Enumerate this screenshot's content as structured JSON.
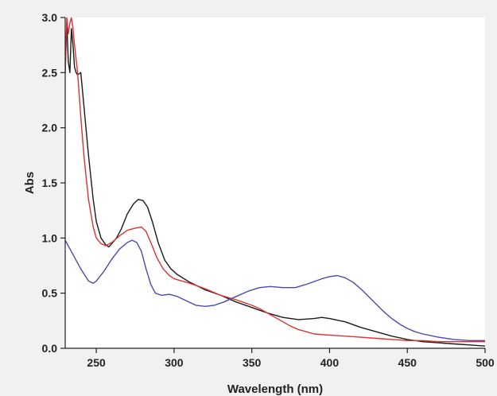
{
  "chart_data": {
    "type": "line",
    "xlabel": "Wavelength (nm)",
    "ylabel": "Abs",
    "xlim": [
      230,
      500
    ],
    "ylim": [
      0.0,
      3.0
    ],
    "x_ticks": [
      250,
      300,
      350,
      400,
      450,
      500
    ],
    "x_tick_labels": [
      "250",
      "300",
      "350",
      "400",
      "450",
      "500"
    ],
    "y_ticks": [
      0.0,
      0.5,
      1.0,
      1.5,
      2.0,
      2.5,
      3.0
    ],
    "y_tick_labels": [
      "0.0",
      "0.5",
      "1.0",
      "1.5",
      "2.0",
      "2.5",
      "3.0"
    ],
    "grid": false,
    "legend": "none",
    "series": [
      {
        "color": "#1a1a1a",
        "points": [
          [
            230,
            2.5
          ],
          [
            231,
            2.95
          ],
          [
            232,
            2.6
          ],
          [
            233,
            2.5
          ],
          [
            234,
            2.9
          ],
          [
            235,
            2.75
          ],
          [
            236,
            2.55
          ],
          [
            237,
            2.5
          ],
          [
            238,
            2.48
          ],
          [
            240,
            2.5
          ],
          [
            242,
            2.2
          ],
          [
            245,
            1.75
          ],
          [
            248,
            1.35
          ],
          [
            250,
            1.15
          ],
          [
            253,
            1.0
          ],
          [
            256,
            0.94
          ],
          [
            258,
            0.92
          ],
          [
            260,
            0.95
          ],
          [
            263,
            1.0
          ],
          [
            266,
            1.08
          ],
          [
            270,
            1.22
          ],
          [
            274,
            1.31
          ],
          [
            277,
            1.35
          ],
          [
            280,
            1.34
          ],
          [
            283,
            1.28
          ],
          [
            286,
            1.15
          ],
          [
            290,
            0.95
          ],
          [
            294,
            0.8
          ],
          [
            298,
            0.72
          ],
          [
            302,
            0.67
          ],
          [
            310,
            0.6
          ],
          [
            320,
            0.53
          ],
          [
            330,
            0.48
          ],
          [
            340,
            0.42
          ],
          [
            350,
            0.37
          ],
          [
            360,
            0.32
          ],
          [
            370,
            0.28
          ],
          [
            380,
            0.26
          ],
          [
            390,
            0.27
          ],
          [
            395,
            0.28
          ],
          [
            400,
            0.27
          ],
          [
            410,
            0.24
          ],
          [
            420,
            0.19
          ],
          [
            430,
            0.15
          ],
          [
            440,
            0.11
          ],
          [
            450,
            0.08
          ],
          [
            460,
            0.06
          ],
          [
            470,
            0.05
          ],
          [
            480,
            0.04
          ],
          [
            490,
            0.03
          ],
          [
            500,
            0.02
          ]
        ]
      },
      {
        "color": "#e03030",
        "points": [
          [
            230,
            2.5
          ],
          [
            231,
            3.0
          ],
          [
            232,
            2.85
          ],
          [
            233,
            2.95
          ],
          [
            234,
            3.0
          ],
          [
            235,
            2.9
          ],
          [
            236,
            2.75
          ],
          [
            238,
            2.5
          ],
          [
            240,
            2.1
          ],
          [
            242,
            1.75
          ],
          [
            245,
            1.35
          ],
          [
            248,
            1.1
          ],
          [
            250,
            1.0
          ],
          [
            253,
            0.95
          ],
          [
            256,
            0.93
          ],
          [
            260,
            0.96
          ],
          [
            265,
            1.02
          ],
          [
            270,
            1.07
          ],
          [
            275,
            1.09
          ],
          [
            279,
            1.1
          ],
          [
            282,
            1.06
          ],
          [
            285,
            0.96
          ],
          [
            289,
            0.82
          ],
          [
            293,
            0.72
          ],
          [
            297,
            0.66
          ],
          [
            300,
            0.63
          ],
          [
            310,
            0.59
          ],
          [
            320,
            0.54
          ],
          [
            330,
            0.48
          ],
          [
            340,
            0.44
          ],
          [
            350,
            0.39
          ],
          [
            355,
            0.36
          ],
          [
            360,
            0.32
          ],
          [
            365,
            0.28
          ],
          [
            370,
            0.24
          ],
          [
            375,
            0.2
          ],
          [
            380,
            0.17
          ],
          [
            390,
            0.13
          ],
          [
            400,
            0.12
          ],
          [
            410,
            0.11
          ],
          [
            420,
            0.1
          ],
          [
            430,
            0.09
          ],
          [
            440,
            0.08
          ],
          [
            450,
            0.07
          ],
          [
            460,
            0.07
          ],
          [
            470,
            0.06
          ],
          [
            480,
            0.06
          ],
          [
            490,
            0.06
          ],
          [
            500,
            0.06
          ]
        ]
      },
      {
        "color": "#4a4ab0",
        "points": [
          [
            230,
            0.98
          ],
          [
            235,
            0.85
          ],
          [
            240,
            0.72
          ],
          [
            245,
            0.61
          ],
          [
            248,
            0.59
          ],
          [
            250,
            0.61
          ],
          [
            255,
            0.7
          ],
          [
            260,
            0.81
          ],
          [
            265,
            0.9
          ],
          [
            270,
            0.96
          ],
          [
            273,
            0.98
          ],
          [
            276,
            0.96
          ],
          [
            279,
            0.88
          ],
          [
            282,
            0.72
          ],
          [
            285,
            0.58
          ],
          [
            288,
            0.5
          ],
          [
            292,
            0.48
          ],
          [
            297,
            0.49
          ],
          [
            302,
            0.47
          ],
          [
            308,
            0.43
          ],
          [
            314,
            0.39
          ],
          [
            320,
            0.38
          ],
          [
            326,
            0.39
          ],
          [
            332,
            0.42
          ],
          [
            340,
            0.47
          ],
          [
            348,
            0.52
          ],
          [
            355,
            0.55
          ],
          [
            362,
            0.56
          ],
          [
            370,
            0.55
          ],
          [
            378,
            0.55
          ],
          [
            385,
            0.58
          ],
          [
            395,
            0.63
          ],
          [
            400,
            0.65
          ],
          [
            405,
            0.66
          ],
          [
            410,
            0.64
          ],
          [
            415,
            0.6
          ],
          [
            420,
            0.54
          ],
          [
            425,
            0.47
          ],
          [
            430,
            0.4
          ],
          [
            435,
            0.33
          ],
          [
            440,
            0.27
          ],
          [
            445,
            0.22
          ],
          [
            450,
            0.18
          ],
          [
            455,
            0.15
          ],
          [
            460,
            0.13
          ],
          [
            470,
            0.1
          ],
          [
            480,
            0.08
          ],
          [
            490,
            0.07
          ],
          [
            500,
            0.07
          ]
        ]
      }
    ]
  }
}
